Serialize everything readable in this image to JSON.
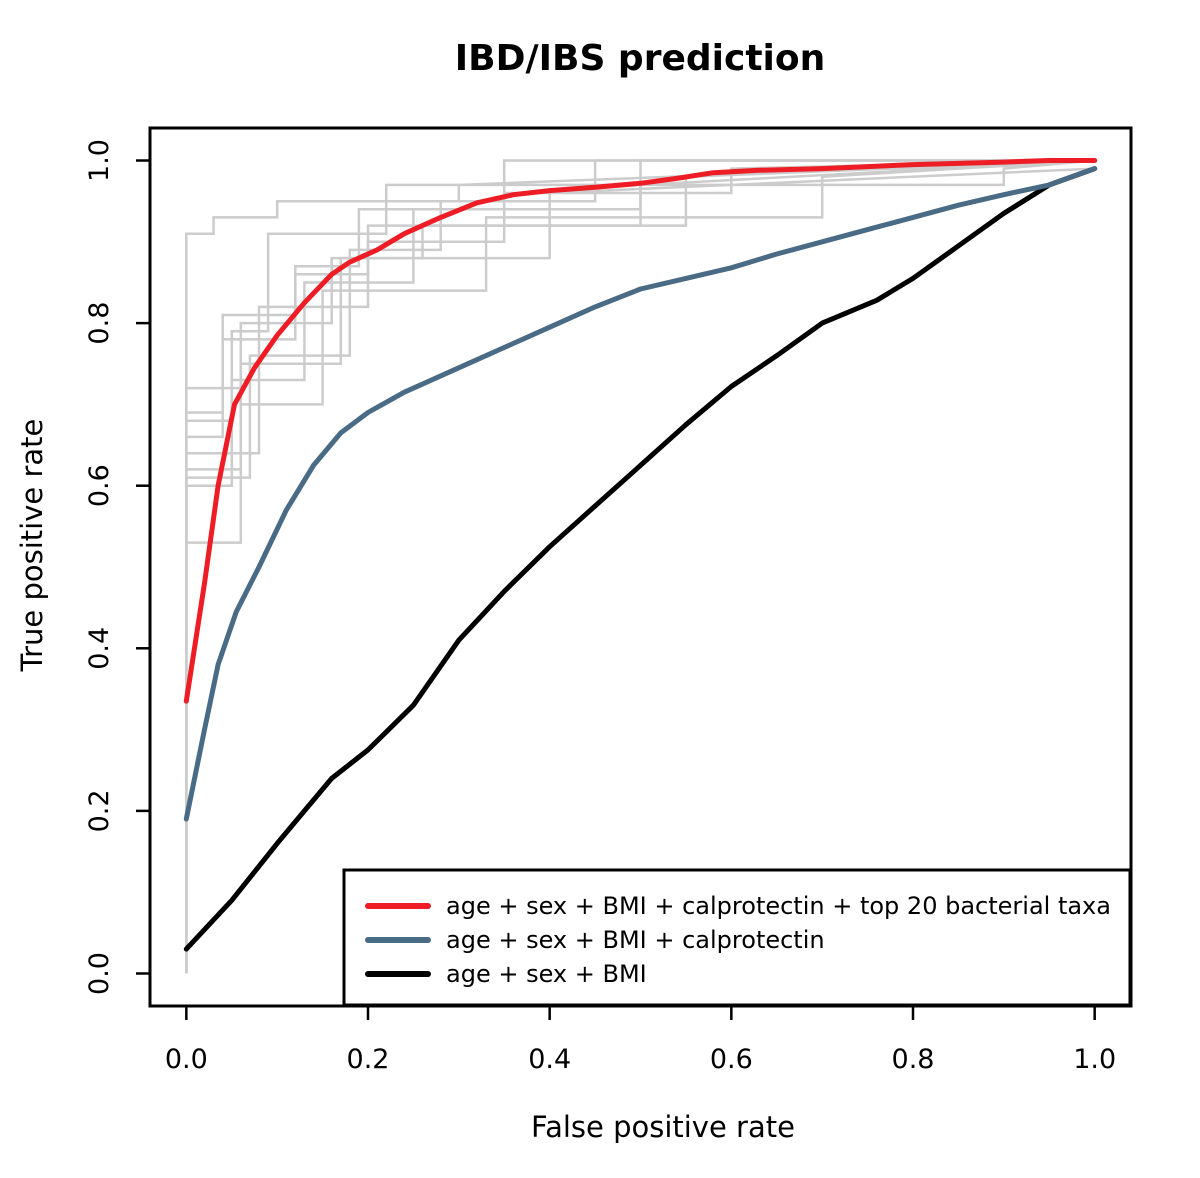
{
  "chart_data": {
    "type": "line",
    "title": "IBD/IBS prediction",
    "xlabel": "False positive rate",
    "ylabel": "True positive rate",
    "xlim": [
      -0.04,
      1.04
    ],
    "ylim": [
      -0.04,
      1.04
    ],
    "xticks": [
      0.0,
      0.2,
      0.4,
      0.6,
      0.8,
      1.0
    ],
    "yticks": [
      0.0,
      0.2,
      0.4,
      0.6,
      0.8,
      1.0
    ],
    "xtick_labels": [
      "0.0",
      "0.2",
      "0.4",
      "0.6",
      "0.8",
      "1.0"
    ],
    "ytick_labels": [
      "0.0",
      "0.2",
      "0.4",
      "0.6",
      "0.8",
      "1.0"
    ],
    "grid": false,
    "legend_position": "bottom-right",
    "series": [
      {
        "name": "age + sex + BMI + calprotectin + top 20 bacterial taxa",
        "color": "#ee1c24",
        "x": [
          0.0,
          0.02,
          0.035,
          0.053,
          0.075,
          0.1,
          0.13,
          0.16,
          0.18,
          0.21,
          0.24,
          0.28,
          0.32,
          0.36,
          0.4,
          0.45,
          0.5,
          0.54,
          0.58,
          0.63,
          0.7,
          0.8,
          0.9,
          0.95,
          1.0
        ],
        "y": [
          0.335,
          0.48,
          0.6,
          0.7,
          0.745,
          0.785,
          0.825,
          0.86,
          0.875,
          0.89,
          0.91,
          0.93,
          0.948,
          0.958,
          0.963,
          0.967,
          0.972,
          0.978,
          0.985,
          0.988,
          0.99,
          0.995,
          0.998,
          1.0,
          1.0
        ]
      },
      {
        "name": "age + sex + BMI + calprotectin",
        "color": "#4a6b85",
        "x": [
          0.0,
          0.02,
          0.035,
          0.055,
          0.08,
          0.11,
          0.14,
          0.17,
          0.2,
          0.24,
          0.3,
          0.35,
          0.4,
          0.45,
          0.5,
          0.55,
          0.6,
          0.65,
          0.7,
          0.75,
          0.8,
          0.85,
          0.9,
          0.95,
          1.0
        ],
        "y": [
          0.19,
          0.3,
          0.38,
          0.445,
          0.5,
          0.57,
          0.625,
          0.665,
          0.69,
          0.715,
          0.745,
          0.77,
          0.795,
          0.82,
          0.842,
          0.855,
          0.868,
          0.885,
          0.9,
          0.915,
          0.93,
          0.945,
          0.958,
          0.97,
          0.99
        ]
      },
      {
        "name": "age + sex + BMI",
        "color": "#000000",
        "x": [
          0.0,
          0.05,
          0.1,
          0.13,
          0.16,
          0.2,
          0.25,
          0.3,
          0.35,
          0.4,
          0.45,
          0.5,
          0.55,
          0.6,
          0.65,
          0.7,
          0.76,
          0.8,
          0.85,
          0.9,
          0.95,
          1.0
        ],
        "y": [
          0.03,
          0.09,
          0.16,
          0.2,
          0.24,
          0.275,
          0.33,
          0.41,
          0.47,
          0.525,
          0.575,
          0.625,
          0.675,
          0.722,
          0.76,
          0.8,
          0.828,
          0.855,
          0.895,
          0.935,
          0.97,
          0.99
        ]
      }
    ],
    "background_curves": {
      "color": "#cccccc",
      "curves": [
        {
          "x": [
            0.0,
            0.0,
            0.03,
            0.03,
            0.1,
            0.1,
            0.3,
            0.3,
            1.0
          ],
          "y": [
            0.0,
            0.91,
            0.91,
            0.93,
            0.93,
            0.95,
            0.95,
            0.97,
            1.0
          ]
        },
        {
          "x": [
            0.0,
            0.0,
            0.06,
            0.06,
            0.16,
            0.16,
            0.4,
            0.4,
            1.0
          ],
          "y": [
            0.0,
            0.72,
            0.72,
            0.8,
            0.8,
            0.88,
            0.88,
            0.96,
            0.99
          ]
        },
        {
          "x": [
            0.0,
            0.0,
            0.05,
            0.05,
            0.13,
            0.13,
            0.25,
            0.25,
            0.5,
            0.5,
            1.0
          ],
          "y": [
            0.0,
            0.6,
            0.6,
            0.73,
            0.73,
            0.85,
            0.85,
            0.94,
            0.94,
            1.0,
            1.0
          ]
        },
        {
          "x": [
            0.0,
            0.0,
            0.04,
            0.04,
            0.12,
            0.12,
            0.2,
            0.2,
            0.55,
            0.55,
            1.0
          ],
          "y": [
            0.0,
            0.66,
            0.66,
            0.78,
            0.78,
            0.86,
            0.86,
            0.92,
            0.92,
            0.98,
            1.0
          ]
        },
        {
          "x": [
            0.0,
            0.0,
            0.06,
            0.06,
            0.15,
            0.15,
            0.33,
            0.33,
            0.7,
            0.7,
            1.0
          ],
          "y": [
            0.0,
            0.53,
            0.53,
            0.7,
            0.7,
            0.84,
            0.84,
            0.93,
            0.93,
            0.98,
            1.0
          ]
        },
        {
          "x": [
            0.0,
            0.0,
            0.07,
            0.07,
            0.18,
            0.18,
            0.28,
            0.28,
            0.45,
            0.45,
            1.0
          ],
          "y": [
            0.0,
            0.61,
            0.61,
            0.76,
            0.76,
            0.89,
            0.89,
            0.95,
            0.95,
            1.0,
            1.0
          ]
        },
        {
          "x": [
            0.0,
            0.0,
            0.08,
            0.08,
            0.2,
            0.2,
            0.35,
            0.35,
            0.6,
            0.6,
            1.0
          ],
          "y": [
            0.0,
            0.64,
            0.64,
            0.82,
            0.82,
            0.9,
            0.9,
            0.96,
            0.96,
            0.99,
            1.0
          ]
        },
        {
          "x": [
            0.0,
            0.0,
            0.05,
            0.05,
            0.09,
            0.09,
            0.22,
            0.22,
            0.9,
            0.9,
            1.0
          ],
          "y": [
            0.0,
            0.68,
            0.68,
            0.79,
            0.79,
            0.91,
            0.91,
            0.97,
            0.97,
            0.99,
            1.0
          ]
        },
        {
          "x": [
            0.0,
            0.0,
            0.06,
            0.06,
            0.17,
            0.17,
            0.26,
            0.26,
            0.5,
            0.5,
            1.0
          ],
          "y": [
            0.0,
            0.62,
            0.62,
            0.75,
            0.75,
            0.88,
            0.88,
            0.92,
            0.92,
            0.97,
            1.0
          ]
        },
        {
          "x": [
            0.0,
            0.0,
            0.04,
            0.04,
            0.12,
            0.12,
            0.19,
            0.19,
            0.35,
            0.35,
            1.0
          ],
          "y": [
            0.0,
            0.69,
            0.69,
            0.81,
            0.81,
            0.87,
            0.87,
            0.94,
            0.94,
            1.0,
            1.0
          ]
        }
      ]
    }
  }
}
